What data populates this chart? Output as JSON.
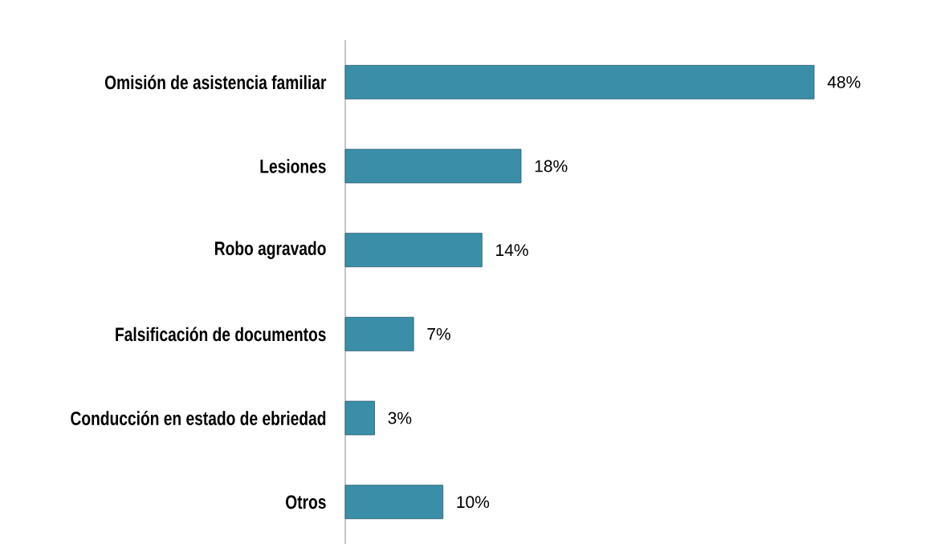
{
  "chart_data": {
    "type": "bar",
    "orientation": "horizontal",
    "categories": [
      "Omisión de asistencia familiar",
      "Lesiones",
      "Robo agravado",
      "Falsificación de documentos",
      "Conducción en estado de ebriedad",
      "Otros"
    ],
    "values": [
      48,
      18,
      14,
      7,
      3,
      10
    ],
    "value_labels": [
      "48%",
      "18%",
      "14%",
      "7%",
      "3%",
      "10%"
    ],
    "color": "#3a8ea8",
    "tick_labels": "y"
  }
}
